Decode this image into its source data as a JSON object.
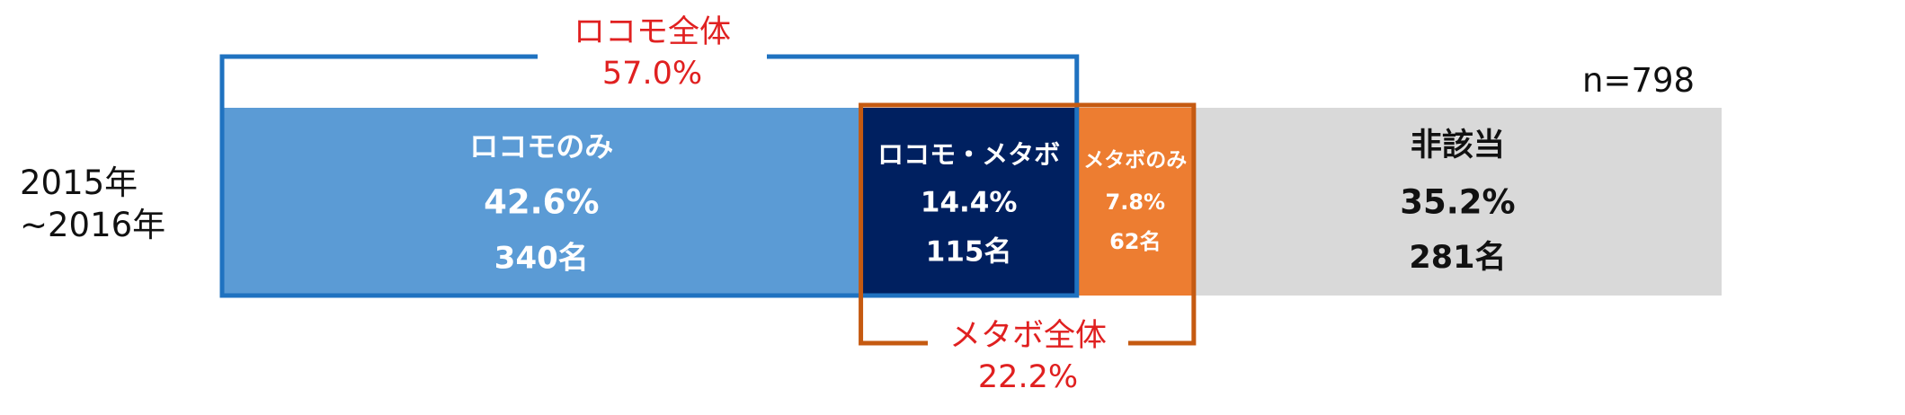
{
  "chart_data": {
    "type": "bar",
    "orientation": "horizontal",
    "stacked": true,
    "row_label": [
      "2015年",
      "~2016年"
    ],
    "sample_size": "n=798",
    "colors": {
      "locomo_only": "#5b9bd5",
      "both": "#002060",
      "metabo_only": "#ed7d31",
      "none": "#d9d9d9",
      "locomo_bracket": "#1f72c0",
      "metabo_bracket": "#c55a11",
      "bracket_text": "#e02020"
    },
    "segments": [
      {
        "label": "ロコモのみ",
        "percent": "42.6%",
        "count": "340名",
        "value": 42.6,
        "color_key": "locomo_only",
        "text_color": "white"
      },
      {
        "label": "ロコモ・メタボ",
        "percent": "14.4%",
        "count": "115名",
        "value": 14.4,
        "color_key": "both",
        "text_color": "white"
      },
      {
        "label": "メタボのみ",
        "percent": "7.8%",
        "count": "62名",
        "value": 7.8,
        "color_key": "metabo_only",
        "text_color": "white"
      },
      {
        "label": "非該当",
        "percent": "35.2%",
        "count": "281名",
        "value": 35.2,
        "color_key": "none",
        "text_color": "dark"
      }
    ],
    "brackets": [
      {
        "label": "ロコモ全体",
        "percent": "57.0%",
        "value": 57.0,
        "position": "top",
        "color_key": "locomo_bracket"
      },
      {
        "label": "メタボ全体",
        "percent": "22.2%",
        "value": 22.2,
        "position": "bottom",
        "color_key": "metabo_bracket"
      }
    ]
  }
}
